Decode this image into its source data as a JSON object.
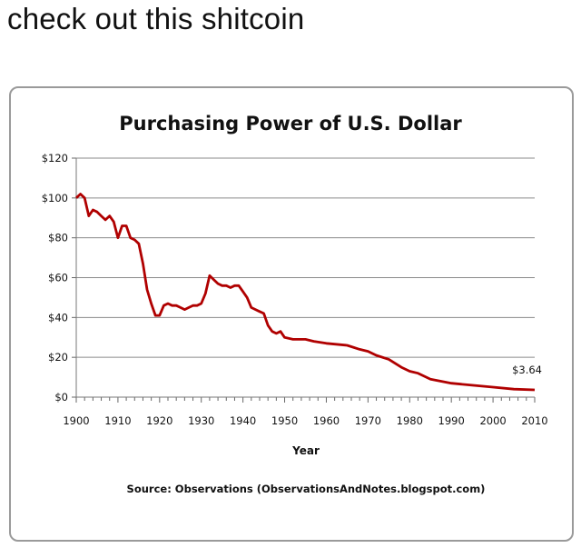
{
  "post": {
    "caption": "check out this shitcoin"
  },
  "chart_data": {
    "type": "line",
    "title": "Purchasing Power of U.S. Dollar",
    "xlabel": "Year",
    "ylabel": "",
    "source": "Source: Observations (ObservationsAndNotes.blogspot.com)",
    "xlim": [
      1900,
      2010
    ],
    "ylim": [
      0,
      120
    ],
    "x_ticks": [
      "1900",
      "1910",
      "1920",
      "1930",
      "1940",
      "1950",
      "1960",
      "1970",
      "1980",
      "1990",
      "2000",
      "2010"
    ],
    "y_ticks": [
      "$0",
      "$20",
      "$40",
      "$60",
      "$80",
      "$100",
      "$120"
    ],
    "y_tick_values": [
      0,
      20,
      40,
      60,
      80,
      100,
      120
    ],
    "grid": true,
    "line_color": "#b00000",
    "end_label": "$3.64",
    "series": [
      {
        "x": [
          1900,
          1901,
          1902,
          1903,
          1904,
          1905,
          1906,
          1907,
          1908,
          1909,
          1910,
          1911,
          1912,
          1913,
          1914,
          1915,
          1916,
          1917,
          1918,
          1919,
          1920,
          1921,
          1922,
          1923,
          1924,
          1925,
          1926,
          1927,
          1928,
          1929,
          1930,
          1931,
          1932,
          1933,
          1934,
          1935,
          1936,
          1937,
          1938,
          1939,
          1940,
          1941,
          1942,
          1943,
          1944,
          1945,
          1946,
          1947,
          1948,
          1949,
          1950,
          1952,
          1955,
          1957,
          1960,
          1965,
          1968,
          1970,
          1972,
          1975,
          1978,
          1980,
          1982,
          1985,
          1990,
          1995,
          2000,
          2005,
          2010
        ],
        "y": [
          100,
          102,
          100,
          91,
          94,
          93,
          91,
          89,
          91,
          88,
          80,
          86,
          86,
          80,
          79,
          77,
          67,
          54,
          47,
          41,
          41,
          46,
          47,
          46,
          46,
          45,
          44,
          45,
          46,
          46,
          47,
          52,
          61,
          59,
          57,
          56,
          56,
          55,
          56,
          56,
          53,
          50,
          45,
          44,
          43,
          42,
          36,
          33,
          32,
          33,
          30,
          29,
          29,
          28,
          27,
          26,
          24,
          23,
          21,
          19,
          15,
          13,
          12,
          9,
          7,
          6,
          5,
          4,
          3.64
        ]
      }
    ]
  }
}
